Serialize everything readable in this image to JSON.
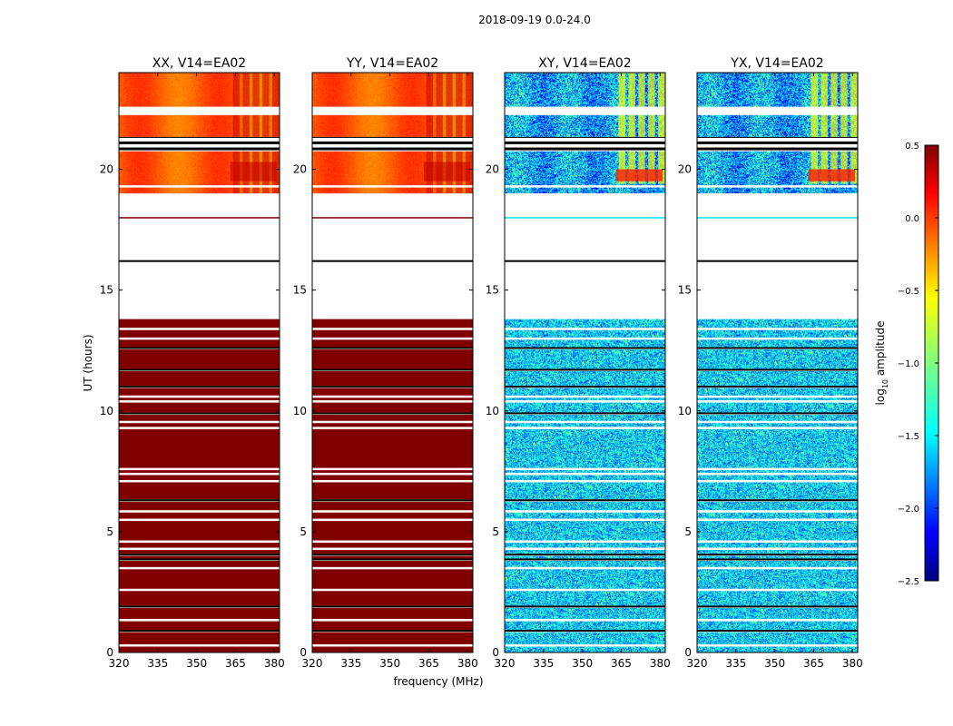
{
  "chart_data": {
    "type": "heatmap",
    "suptitle": "2018-09-19 0.0-24.0",
    "xlabel": "frequency (MHz)",
    "ylabel": "UT (hours)",
    "xlim": [
      320,
      382
    ],
    "ylim": [
      0,
      24
    ],
    "xticks": [
      320,
      335,
      350,
      365,
      380
    ],
    "xtick_labels": [
      "320",
      "335",
      "350",
      "365",
      "380"
    ],
    "yticks": [
      0,
      5,
      10,
      15,
      20
    ],
    "ytick_labels": [
      "0",
      "5",
      "10",
      "15",
      "20"
    ],
    "colorbar": {
      "label_main": "log",
      "label_sub": "10",
      "label_tail": " amplitude",
      "vmin": -2.5,
      "vmax": 0.5,
      "ticks": [
        0.5,
        0.0,
        -0.5,
        -1.0,
        -1.5,
        -2.0,
        -2.5
      ],
      "tick_labels": [
        "0.5",
        "0.0",
        "−0.5",
        "−1.0",
        "−1.5",
        "−2.0",
        "−2.5"
      ],
      "colormap": "jet"
    },
    "panels": [
      {
        "title": "XX, V14=EA02",
        "pol": "parallel"
      },
      {
        "title": "YY, V14=EA02",
        "pol": "parallel"
      },
      {
        "title": "XY, V14=EA02",
        "pol": "cross"
      },
      {
        "title": "YX, V14=EA02",
        "pol": "cross"
      }
    ],
    "no_data_intervals_ut": [
      [
        13.8,
        16.2
      ],
      [
        16.2,
        18.0
      ],
      [
        18.05,
        19.0
      ]
    ],
    "flag_lines_ut": [
      0.3,
      0.9,
      1.35,
      1.9,
      2.6,
      3.5,
      3.85,
      4.05,
      4.3,
      4.6,
      5.5,
      5.85,
      6.3,
      7.1,
      7.4,
      7.6,
      9.3,
      9.55,
      9.9,
      10.4,
      10.6,
      11.0,
      11.7,
      12.6,
      13.0,
      13.4,
      19.3,
      20.8,
      21.05,
      21.3,
      22.3,
      22.55
    ],
    "black_lines_ut": [
      0.9,
      1.9,
      3.85,
      4.05,
      6.3,
      9.9,
      11.0,
      11.7,
      12.6,
      16.2,
      21.3,
      21.05,
      22.3
    ],
    "parallel_values": {
      "low_ut_log10_amp": 0.5,
      "high_ut_log10_amp": [
        -0.3,
        0.0
      ],
      "rfi_band_mhz": [
        363,
        382
      ],
      "rfi_log10_amp": 0.3
    },
    "cross_values": {
      "low_ut_log10_amp": [
        -2.0,
        -1.0
      ],
      "high_ut_log10_amp": [
        -2.3,
        -1.0
      ],
      "rfi_band_mhz": [
        363,
        382
      ],
      "rfi_log10_amp": [
        -0.5,
        0.5
      ]
    }
  }
}
